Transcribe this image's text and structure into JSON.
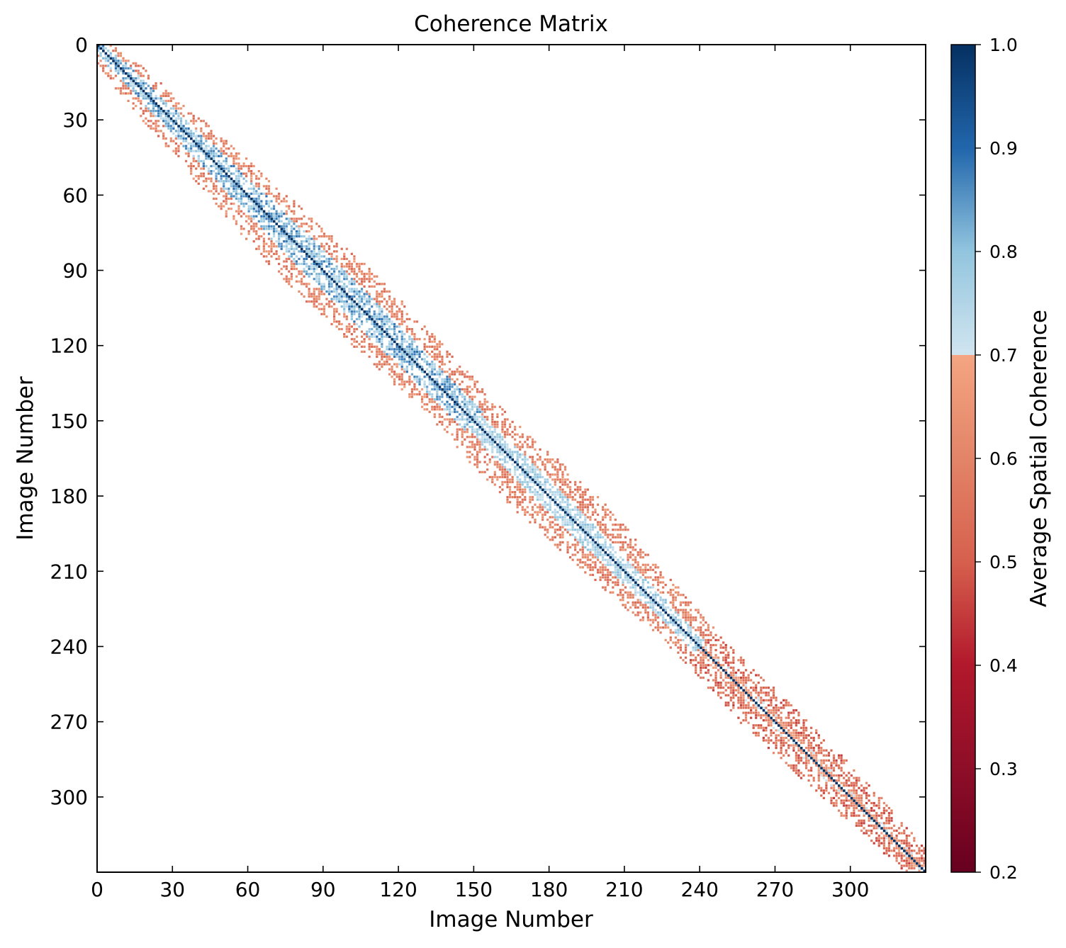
{
  "chart_data": {
    "type": "heatmap",
    "title": "Coherence Matrix",
    "xlabel": "Image Number",
    "ylabel": "Image Number",
    "n_images": 330,
    "xlim": [
      0,
      330
    ],
    "ylim": [
      330,
      0
    ],
    "xticks": [
      0,
      30,
      60,
      90,
      120,
      150,
      180,
      210,
      240,
      270,
      300
    ],
    "yticks": [
      0,
      30,
      60,
      90,
      120,
      150,
      180,
      210,
      240,
      270,
      300
    ],
    "diagonal_value": 1.0,
    "threshold_shown": 0.5,
    "band_half_width_estimate": [
      {
        "image": 0,
        "half_width": 8
      },
      {
        "image": 30,
        "half_width": 12
      },
      {
        "image": 60,
        "half_width": 16
      },
      {
        "image": 90,
        "half_width": 20
      },
      {
        "image": 120,
        "half_width": 18
      },
      {
        "image": 150,
        "half_width": 16
      },
      {
        "image": 180,
        "half_width": 20
      },
      {
        "image": 210,
        "half_width": 16
      },
      {
        "image": 240,
        "half_width": 12
      },
      {
        "image": 270,
        "half_width": 14
      },
      {
        "image": 300,
        "half_width": 12
      },
      {
        "image": 330,
        "half_width": 8
      }
    ],
    "regions": [
      {
        "images": [
          0,
          150
        ],
        "near_diagonal_coherence": "0.7-0.9 (blue)",
        "off_band_coherence": "0.5-0.65 (orange)"
      },
      {
        "images": [
          150,
          240
        ],
        "near_diagonal_coherence": "0.7-0.8 (light blue)",
        "off_band_coherence": "0.5-0.65 (orange)"
      },
      {
        "images": [
          240,
          330
        ],
        "near_diagonal_coherence": "0.55-0.7",
        "off_band_coherence": "0.4-0.6 (red)"
      }
    ],
    "grid": false,
    "colorbar": {
      "label": "Average Spatial Coherence",
      "min": 0.2,
      "max": 1.0,
      "ticks": [
        "0.2",
        "0.3",
        "0.4",
        "0.5",
        "0.6",
        "0.7",
        "0.8",
        "0.9",
        "1.0"
      ],
      "split_at": 0.7,
      "colormap": "RdBu",
      "stops": [
        {
          "v": 0.2,
          "color": "#67001f"
        },
        {
          "v": 0.3,
          "color": "#8e0e28"
        },
        {
          "v": 0.4,
          "color": "#b2182b"
        },
        {
          "v": 0.5,
          "color": "#d6604d"
        },
        {
          "v": 0.6,
          "color": "#e38468"
        },
        {
          "v": 0.7,
          "color": "#f4a582"
        },
        {
          "v": 0.7,
          "color": "#d1e5f0"
        },
        {
          "v": 0.8,
          "color": "#92c5de"
        },
        {
          "v": 0.9,
          "color": "#2166ac"
        },
        {
          "v": 1.0,
          "color": "#053061"
        }
      ]
    }
  }
}
